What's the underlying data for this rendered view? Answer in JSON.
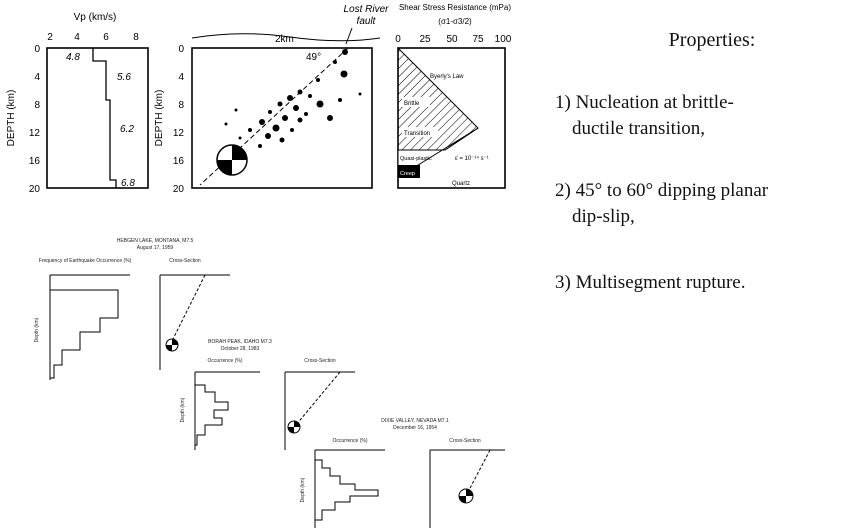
{
  "velocity_panel": {
    "axis_label": "Vp (km/s)",
    "x_ticks": [
      "2",
      "4",
      "6",
      "8"
    ],
    "depth_label": "DEPTH (km)",
    "depth_ticks": [
      "0",
      "4",
      "8",
      "12",
      "16",
      "20"
    ],
    "layer_labels": [
      "4.8",
      "5.6",
      "6.2",
      "6.8"
    ]
  },
  "section_panel": {
    "fault_label": [
      "Lost River",
      "fault"
    ],
    "scale_label": "2km",
    "dip_label": "49°",
    "depth_label": "DEPTH (km)",
    "depth_ticks": [
      "0",
      "4",
      "8",
      "12",
      "16",
      "20"
    ]
  },
  "stress_panel": {
    "title": "Shear Stress Resistance (mPa)",
    "subtitle": "(σ1-σ3/2)",
    "x_ticks": [
      "0",
      "25",
      "50",
      "75",
      "100"
    ],
    "law_label": "Byerly's Law",
    "zones": [
      "Brittle",
      "Transition",
      "Quasi-plastic",
      "Creep"
    ],
    "strain_label": "ε̇ = 10⁻¹⁴ s⁻¹",
    "material_label": "Quartz"
  },
  "properties": {
    "heading": "Properties:",
    "items": [
      [
        "1) Nucleation at brittle-",
        "ductile transition,"
      ],
      [
        "2) 45° to 60° dipping planar",
        "dip-slip,"
      ],
      [
        "3) Multisegment rupture."
      ]
    ]
  },
  "case_studies": [
    {
      "title": "HEBGEN LAKE, MONTANA, M7.5",
      "date": "August 17, 1959",
      "histogram_label": "Frequency of Earthquake Occurrence (%)",
      "section_label": "Cross-Section",
      "depth_label": "Depth (km)"
    },
    {
      "title": "BORAH PEAK, IDAHO M7.3",
      "date": "October 28, 1983",
      "histogram_label": "Occurrence (%)",
      "section_label": "Cross-Section",
      "depth_label": "Depth (km)"
    },
    {
      "title": "DIXIE VALLEY, NEVADA M7.1",
      "date": "December 16, 1954",
      "histogram_label": "Occurrence (%)",
      "section_label": "Cross-Section",
      "depth_label": "Depth (km)"
    }
  ]
}
